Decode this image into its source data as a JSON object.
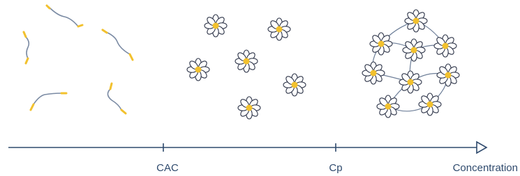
{
  "axis": {
    "ticks": [
      "CAC",
      "Cp"
    ],
    "title": "Concentration"
  }
}
